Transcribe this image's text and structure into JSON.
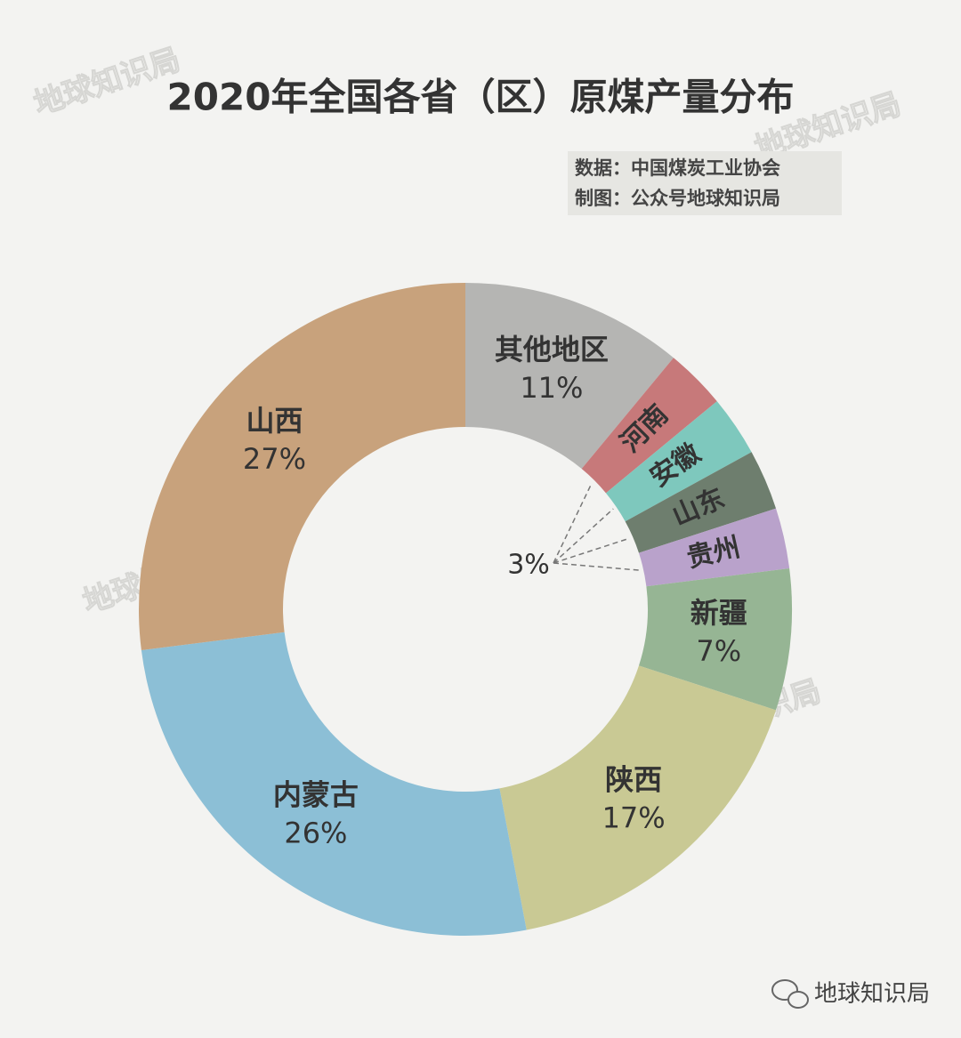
{
  "chart_data": {
    "type": "donut",
    "title": "2020年全国各省（区）原煤产量分布",
    "source": "数据：中国煤炭工业协会",
    "credit": "制图：公众号地球知识局",
    "watermark": "地球知识局",
    "footer": "地球知识局",
    "categories": [
      "其他地区",
      "河南",
      "安徽",
      "山东",
      "贵州",
      "新疆",
      "陕西",
      "内蒙古",
      "山西"
    ],
    "values": [
      11,
      3,
      3,
      3,
      3,
      7,
      17,
      26,
      27
    ],
    "value_labels": [
      "11%",
      null,
      null,
      null,
      null,
      "7%",
      "17%",
      "26%",
      "27%"
    ],
    "annotations": [
      "3%"
    ],
    "colors": [
      "#b5b5b3",
      "#c7797a",
      "#7ec8bd",
      "#6e7e6e",
      "#b9a2cb",
      "#96b594",
      "#c9c994",
      "#8cbfd6",
      "#c8a27c"
    ]
  }
}
